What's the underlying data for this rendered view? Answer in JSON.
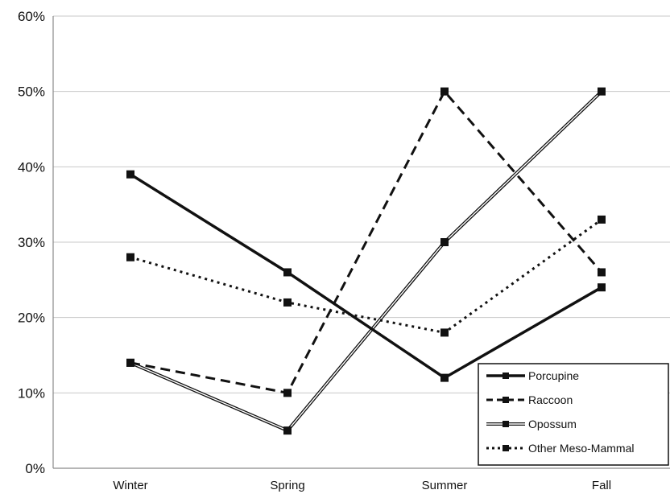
{
  "chart_data": {
    "type": "line",
    "categories": [
      "Winter",
      "Spring",
      "Summer",
      "Fall"
    ],
    "y_ticks": [
      "0%",
      "10%",
      "20%",
      "30%",
      "40%",
      "50%",
      "60%"
    ],
    "ylim": [
      0,
      60
    ],
    "grid": true,
    "legend_position": "bottom-right",
    "series": [
      {
        "name": "Porcupine",
        "values": [
          39,
          26,
          12,
          24
        ],
        "style": "solid",
        "color": "#111111"
      },
      {
        "name": "Raccoon",
        "values": [
          14,
          10,
          50,
          26
        ],
        "style": "dashed",
        "color": "#111111"
      },
      {
        "name": "Opossum",
        "values": [
          14,
          5,
          30,
          50
        ],
        "style": "double",
        "color": "#111111"
      },
      {
        "name": "Other Meso-Mammal",
        "values": [
          28,
          22,
          18,
          33
        ],
        "style": "dotted",
        "color": "#111111"
      }
    ]
  }
}
